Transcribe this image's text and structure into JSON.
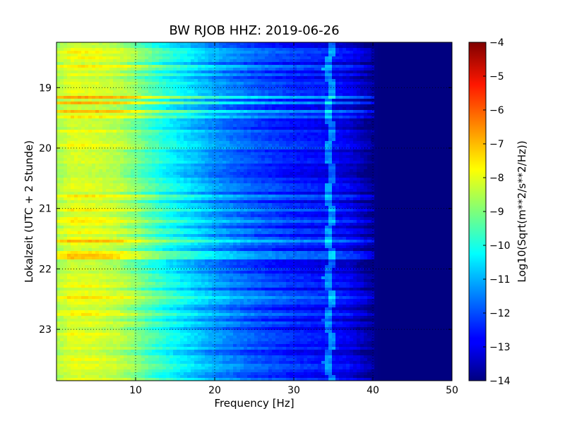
{
  "chart_data": {
    "type": "heatmap",
    "title": "BW RJOB HHZ: 2019-06-26",
    "xlabel": "Frequency [Hz]",
    "ylabel": "Lokalzeit (UTC + 2 Stunde)",
    "xlim": [
      0,
      50
    ],
    "ylim": [
      18.25,
      23.85
    ],
    "y_inverted": true,
    "x_ticks": [
      10,
      20,
      30,
      40,
      50
    ],
    "y_ticks": [
      19,
      20,
      21,
      22,
      23
    ],
    "grid": true,
    "grid_style": "dotted",
    "colormap": "jet",
    "colorbar": {
      "label": "Log10(Sqrt(m**2/s**2/Hz))",
      "range": [
        -14,
        -4
      ],
      "ticks": [
        -14,
        -13,
        -12,
        -11,
        -10,
        -9,
        -8,
        -7,
        -6,
        -5,
        -4
      ]
    },
    "spectral_profile": {
      "frequency_hz": [
        0,
        2,
        5,
        8,
        10,
        12,
        14,
        16,
        18,
        20,
        22,
        25,
        28,
        30,
        32,
        35,
        37,
        38,
        39,
        40,
        41,
        50
      ],
      "value": [
        -8.6,
        -8.1,
        -8.2,
        -8.5,
        -9.0,
        -9.6,
        -10.1,
        -10.5,
        -10.9,
        -11.3,
        -11.6,
        -12.0,
        -12.3,
        -12.5,
        -12.6,
        -12.8,
        -13.0,
        -13.3,
        -13.6,
        -13.9,
        -14.0,
        -14.0
      ]
    },
    "features": [
      {
        "label": "tonal line",
        "frequency_hz": 34.5
      },
      {
        "label": "broadband bursts",
        "times": [
          19.15,
          19.25,
          19.4,
          21.55,
          21.8
        ]
      }
    ]
  }
}
